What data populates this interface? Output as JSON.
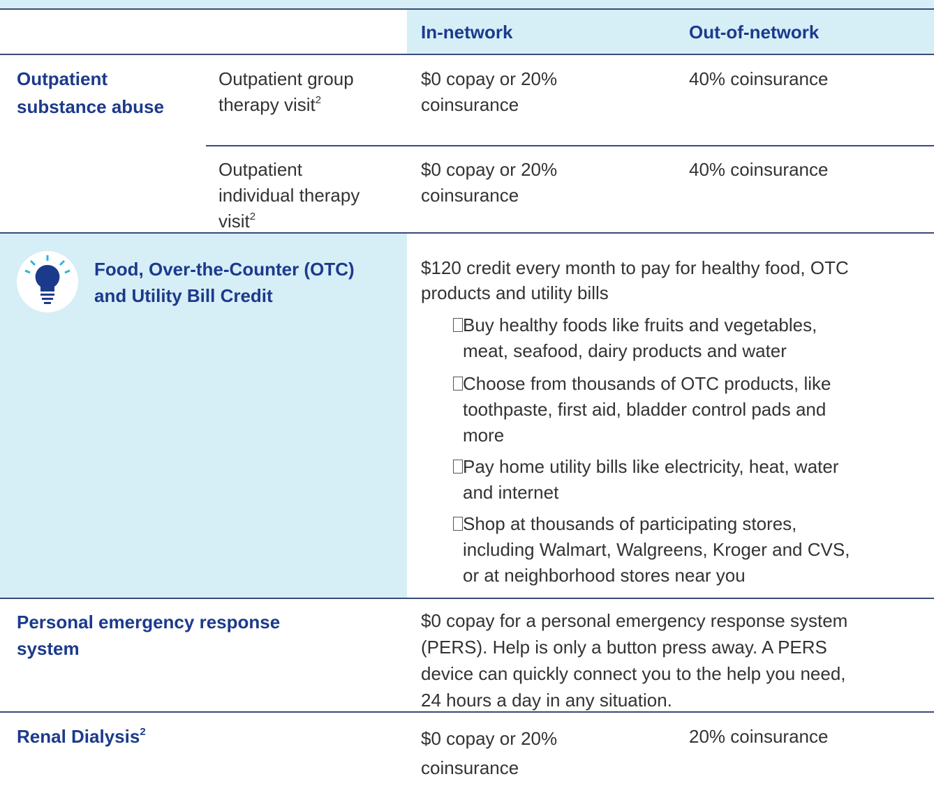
{
  "header": {
    "in_network": "In-network",
    "out_of_network": "Out-of-network"
  },
  "rows": [
    {
      "benefit": [
        "Outpatient",
        "substance abuse"
      ],
      "items": [
        {
          "name": [
            "Outpatient group",
            "therapy visit"
          ],
          "note": "2",
          "in_network": [
            "$0 copay or 20%",
            "coinsurance"
          ],
          "out_of_network": "40% coinsurance"
        },
        {
          "name": [
            "Outpatient",
            "individual therapy",
            "visit"
          ],
          "note": "2",
          "in_network": [
            "$0 copay or 20%",
            "coinsurance"
          ],
          "out_of_network": "40% coinsurance"
        }
      ]
    },
    {
      "benefit": [
        "Food, Over-the-Counter (OTC)",
        "and Utility Bill Credit"
      ],
      "summary": [
        "$120 credit every month to pay for healthy food, OTC",
        "products and utility bills"
      ],
      "bullets": [
        [
          "Buy healthy foods like fruits and vegetables,",
          "meat, seafood, dairy products and water"
        ],
        [
          "Choose from thousands of OTC products, like",
          "toothpaste, first aid, bladder control pads and",
          "more"
        ],
        [
          "Pay home utility bills like electricity, heat, water",
          "and internet"
        ],
        [
          "Shop at thousands of participating stores,",
          "including Walmart, Walgreens, Kroger and CVS,",
          "or at neighborhood stores near you"
        ]
      ]
    },
    {
      "benefit": [
        "Personal emergency response",
        "system"
      ],
      "description": [
        "$0 copay for a personal emergency response system",
        "(PERS). Help is only a button press away. A PERS",
        "device can quickly connect you to the help you need,",
        "24 hours a day in any situation."
      ]
    },
    {
      "benefit": [
        "Renal Dialysis"
      ],
      "note": "2",
      "in_network": [
        "$0 copay or 20%",
        "coinsurance"
      ],
      "out_of_network": "20% coinsurance"
    }
  ]
}
